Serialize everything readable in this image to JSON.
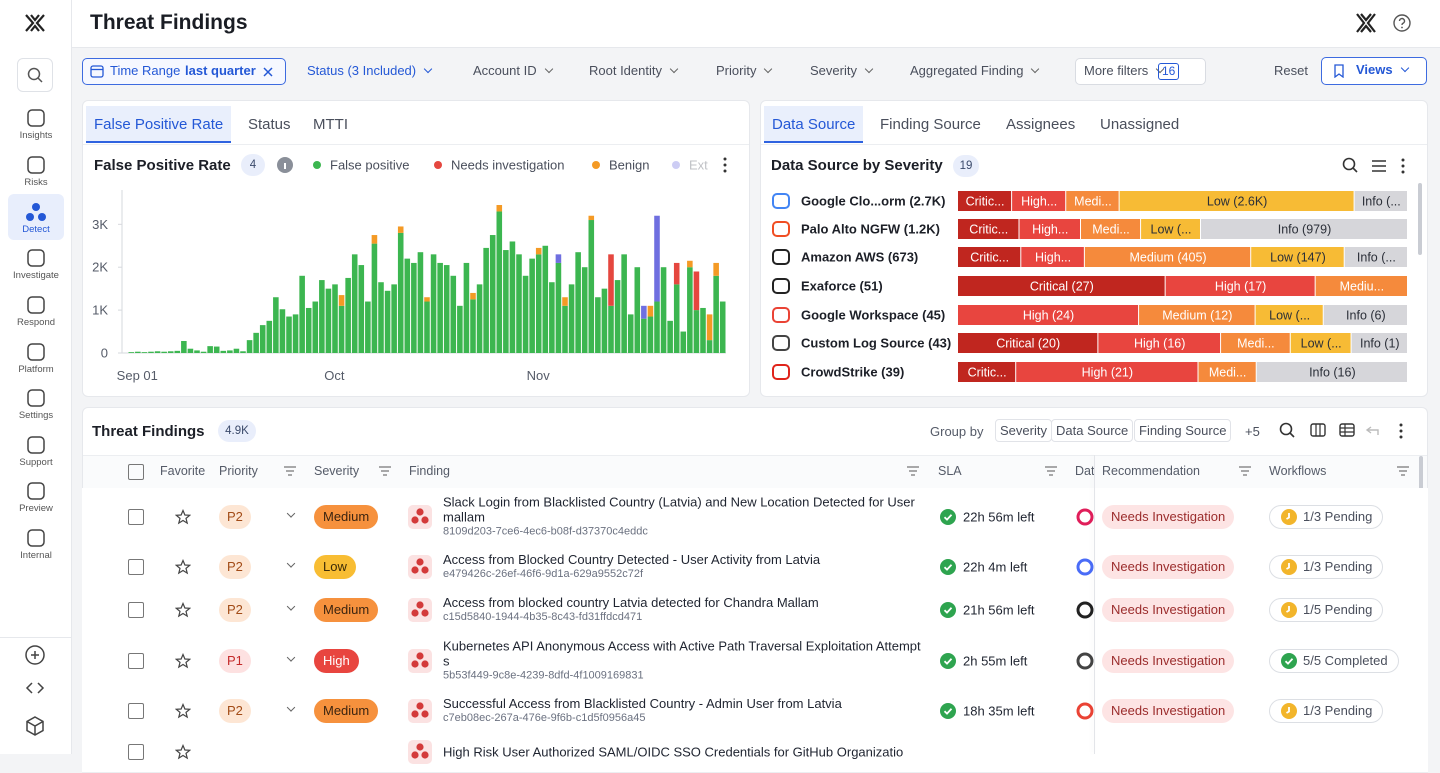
{
  "sidebar": {
    "items": [
      "Insights",
      "Risks",
      "Detect",
      "Investigate",
      "Respond",
      "Platform",
      "Settings",
      "Support",
      "Preview",
      "Internal"
    ],
    "active": "Detect"
  },
  "header": {
    "title": "Threat Findings"
  },
  "filters": {
    "time_range": {
      "label": "Time Range",
      "value": "last quarter"
    },
    "status": "Status (3 Included)",
    "items": [
      "Account ID",
      "Root Identity",
      "Priority",
      "Severity",
      "Aggregated Finding"
    ],
    "more": {
      "label": "More filters",
      "count": "16"
    },
    "reset": "Reset",
    "views": "Views"
  },
  "fp_panel": {
    "tabs": [
      "False Positive Rate",
      "Status",
      "MTTI"
    ],
    "badge": "4"
  },
  "chart_data": {
    "type": "bar",
    "stacked": true,
    "title": "False Positive Rate",
    "categories": [
      "Sep 01",
      null,
      null,
      null,
      null,
      null,
      null,
      null,
      null,
      null,
      null,
      null,
      null,
      null,
      null,
      null,
      null,
      null,
      null,
      null,
      null,
      null,
      null,
      null,
      null,
      null,
      null,
      null,
      null,
      null,
      "Oct",
      null,
      null,
      null,
      null,
      null,
      null,
      null,
      null,
      null,
      null,
      null,
      null,
      null,
      null,
      null,
      null,
      null,
      null,
      null,
      null,
      null,
      null,
      null,
      null,
      null,
      null,
      null,
      null,
      null,
      null,
      "Nov",
      null,
      null,
      null,
      null,
      null,
      null,
      null,
      null,
      null,
      null,
      null,
      null,
      null,
      null,
      null,
      null,
      null,
      null,
      null,
      null,
      null,
      null,
      null,
      null,
      null,
      null,
      null,
      null,
      null
    ],
    "series": [
      {
        "name": "False positive",
        "color": "#3cb650",
        "values": [
          20,
          30,
          20,
          30,
          40,
          30,
          40,
          50,
          280,
          100,
          60,
          30,
          160,
          150,
          50,
          60,
          100,
          40,
          300,
          470,
          650,
          750,
          1300,
          1020,
          850,
          900,
          1800,
          1050,
          1200,
          1700,
          1500,
          1600,
          1100,
          1750,
          2300,
          2050,
          1200,
          2550,
          1650,
          1450,
          1600,
          2800,
          2200,
          2100,
          2350,
          1200,
          2300,
          2100,
          2050,
          1800,
          1100,
          2100,
          1250,
          1600,
          2450,
          2750,
          3300,
          2400,
          2600,
          2300,
          1800,
          2200,
          2300,
          2500,
          1650,
          2100,
          1100,
          1600,
          2350,
          2000,
          3100,
          1300,
          1500,
          1100,
          1700,
          2300,
          900,
          2000,
          800,
          850,
          1200,
          2000,
          750,
          1600,
          500,
          2000,
          1000,
          1050,
          300,
          1800,
          1200
        ]
      },
      {
        "name": "Needs investigation",
        "color": "#e5473f",
        "values": [
          0,
          0,
          0,
          0,
          0,
          0,
          0,
          0,
          0,
          0,
          0,
          0,
          0,
          0,
          0,
          0,
          0,
          0,
          0,
          0,
          0,
          0,
          0,
          0,
          0,
          0,
          0,
          0,
          0,
          0,
          0,
          0,
          0,
          0,
          0,
          0,
          0,
          0,
          0,
          0,
          0,
          0,
          0,
          0,
          0,
          0,
          0,
          0,
          0,
          0,
          0,
          0,
          0,
          0,
          0,
          0,
          0,
          0,
          0,
          0,
          0,
          0,
          0,
          0,
          0,
          0,
          0,
          0,
          0,
          0,
          0,
          0,
          0,
          1200,
          0,
          0,
          0,
          0,
          0,
          0,
          0,
          0,
          0,
          500,
          0,
          0,
          900,
          0,
          0,
          0,
          0
        ]
      },
      {
        "name": "Benign",
        "color": "#f49a25",
        "values": [
          0,
          0,
          0,
          0,
          0,
          0,
          0,
          0,
          0,
          0,
          0,
          0,
          0,
          0,
          0,
          0,
          0,
          0,
          0,
          0,
          0,
          0,
          0,
          0,
          0,
          0,
          0,
          0,
          0,
          0,
          0,
          0,
          250,
          0,
          0,
          0,
          0,
          200,
          0,
          0,
          0,
          150,
          0,
          0,
          0,
          100,
          0,
          0,
          0,
          0,
          0,
          0,
          150,
          0,
          0,
          0,
          150,
          0,
          0,
          0,
          0,
          0,
          150,
          0,
          0,
          0,
          200,
          0,
          0,
          0,
          100,
          0,
          0,
          0,
          0,
          0,
          0,
          0,
          0,
          250,
          0,
          0,
          0,
          0,
          0,
          150,
          0,
          0,
          600,
          300,
          0
        ]
      },
      {
        "name": "Ext",
        "color": "#6f6fe0",
        "values": [
          0,
          0,
          0,
          0,
          0,
          0,
          0,
          0,
          0,
          0,
          0,
          0,
          0,
          0,
          0,
          0,
          0,
          0,
          0,
          0,
          0,
          0,
          0,
          0,
          0,
          0,
          0,
          0,
          0,
          0,
          0,
          0,
          0,
          0,
          0,
          0,
          0,
          0,
          0,
          0,
          0,
          0,
          0,
          0,
          0,
          0,
          0,
          0,
          0,
          0,
          0,
          0,
          0,
          0,
          0,
          0,
          0,
          0,
          0,
          0,
          0,
          0,
          0,
          0,
          0,
          200,
          0,
          0,
          0,
          0,
          0,
          0,
          0,
          0,
          0,
          0,
          0,
          0,
          300,
          0,
          2000,
          0,
          0,
          0,
          0,
          0,
          0,
          0,
          0,
          0,
          0
        ]
      }
    ],
    "ylim": [
      0,
      3800
    ],
    "yticks": [
      0,
      {
        "value": 1000,
        "label": "1K"
      },
      {
        "value": 2000,
        "label": "2K"
      },
      {
        "value": 3000,
        "label": "3K"
      }
    ],
    "grid": false
  },
  "ds_panel": {
    "tabs": [
      "Data Source",
      "Finding Source",
      "Assignees",
      "Unassigned"
    ],
    "title": "Data Source by Severity",
    "badge": "19",
    "rows": [
      {
        "label": "Google Clo...orm (2.7K)",
        "segments": [
          {
            "value": 30,
            "label": "Critic...",
            "color": "#c0261f"
          },
          {
            "value": 30,
            "label": "High...",
            "color": "#e8453f"
          },
          {
            "value": 20,
            "label": "Medi...",
            "color": "#f58a3c"
          },
          {
            "value": 2600,
            "label": "Low (2.6K)",
            "color": "#f7bb35"
          },
          {
            "value": 20,
            "label": "Info (...",
            "color": "#d6d6da"
          }
        ]
      },
      {
        "label": "Palo Alto NGFW (1.2K)",
        "segments": [
          {
            "value": 60,
            "label": "Critic...",
            "color": "#c0261f"
          },
          {
            "value": 60,
            "label": "High...",
            "color": "#e8453f"
          },
          {
            "value": 51,
            "label": "Medi...",
            "color": "#f58a3c"
          },
          {
            "value": 50,
            "label": "Low (...",
            "color": "#f7bb35"
          },
          {
            "value": 979,
            "label": "Info (979)",
            "color": "#d6d6da"
          }
        ]
      },
      {
        "label": "Amazon AWS (673)",
        "segments": [
          {
            "value": 40,
            "label": "Critic...",
            "color": "#c0261f"
          },
          {
            "value": 41,
            "label": "High...",
            "color": "#e8453f"
          },
          {
            "value": 405,
            "label": "Medium (405)",
            "color": "#f58a3c"
          },
          {
            "value": 147,
            "label": "Low (147)",
            "color": "#f7bb35"
          },
          {
            "value": 40,
            "label": "Info (...",
            "color": "#d6d6da"
          }
        ]
      },
      {
        "label": "Exaforce (51)",
        "segments": [
          {
            "value": 27,
            "label": "Critical (27)",
            "color": "#c0261f"
          },
          {
            "value": 17,
            "label": "High (17)",
            "color": "#e8453f"
          },
          {
            "value": 7,
            "label": "Mediu...",
            "color": "#f58a3c"
          }
        ]
      },
      {
        "label": "Google Workspace (45)",
        "segments": [
          {
            "value": 24,
            "label": "High (24)",
            "color": "#e8453f"
          },
          {
            "value": 12,
            "label": "Medium (12)",
            "color": "#f58a3c"
          },
          {
            "value": 3,
            "label": "Low (...",
            "color": "#f7bb35"
          },
          {
            "value": 6,
            "label": "Info (6)",
            "color": "#d6d6da"
          }
        ]
      },
      {
        "label": "Custom Log Source (43)",
        "segments": [
          {
            "value": 20,
            "label": "Critical (20)",
            "color": "#c0261f"
          },
          {
            "value": 16,
            "label": "High (16)",
            "color": "#e8453f"
          },
          {
            "value": 4,
            "label": "Medi...",
            "color": "#f58a3c"
          },
          {
            "value": 2,
            "label": "Low (...",
            "color": "#f7bb35"
          },
          {
            "value": 1,
            "label": "Info (1)",
            "color": "#d6d6da"
          }
        ]
      },
      {
        "label": "CrowdStrike (39)",
        "segments": [
          {
            "value": 1,
            "label": "Critic...",
            "color": "#c0261f"
          },
          {
            "value": 21,
            "label": "High (21)",
            "color": "#e8453f"
          },
          {
            "value": 1,
            "label": "Medi...",
            "color": "#f58a3c"
          },
          {
            "value": 16,
            "label": "Info (16)",
            "color": "#d6d6da"
          }
        ]
      }
    ]
  },
  "table": {
    "title": "Threat Findings",
    "count": "4.9K",
    "group_by": {
      "label": "Group by",
      "items": [
        "Severity",
        "Data Source",
        "Finding Source"
      ],
      "more": "+5"
    },
    "columns": [
      "Favorite",
      "Priority",
      "Severity",
      "Finding",
      "SLA",
      "Dat",
      "Recommendation",
      "Workflows"
    ],
    "rows": [
      {
        "priority": {
          "label": "P2",
          "bg": "#fde6d4",
          "fg": "#a24b16"
        },
        "severity": {
          "label": "Medium",
          "bg": "#f6913d",
          "fg": "#3b2410"
        },
        "title": "Slack Login from Blacklisted Country (Latvia) and New Location Detected for User mallam",
        "id": "8109d203-7ce6-4ec6-b08f-d37370c4eddc",
        "sla": "22h 56m left",
        "recommendation": "Needs Investigation",
        "workflow": {
          "label": "1/3 Pending",
          "done": false
        }
      },
      {
        "priority": {
          "label": "P2",
          "bg": "#fde6d4",
          "fg": "#a24b16"
        },
        "severity": {
          "label": "Low",
          "bg": "#f8bd33",
          "fg": "#3b2a08"
        },
        "title": "Access from Blocked Country Detected - User Activity from Latvia",
        "id": "e479426c-26ef-46f6-9d1a-629a9552c72f",
        "sla": "22h 4m left",
        "recommendation": "Needs Investigation",
        "workflow": {
          "label": "1/3 Pending",
          "done": false
        }
      },
      {
        "priority": {
          "label": "P2",
          "bg": "#fde6d4",
          "fg": "#a24b16"
        },
        "severity": {
          "label": "Medium",
          "bg": "#f6913d",
          "fg": "#3b2410"
        },
        "title": "Access from blocked country Latvia detected for Chandra Mallam",
        "id": "c15d5840-1944-4b35-8c43-fd31ffdcd471",
        "sla": "21h 56m left",
        "recommendation": "Needs Investigation",
        "workflow": {
          "label": "1/5 Pending",
          "done": false
        }
      },
      {
        "priority": {
          "label": "P1",
          "bg": "#fde1e1",
          "fg": "#c42a2a"
        },
        "severity": {
          "label": "High",
          "bg": "#e8453f",
          "fg": "#ffffff"
        },
        "title": "Kubernetes API Anonymous Access with Active Path Traversal Exploitation Attempts",
        "id": "5b53f449-9c8e-4239-8dfd-4f1009169831",
        "sla": "2h 55m left",
        "recommendation": "Needs Investigation",
        "workflow": {
          "label": "5/5 Completed",
          "done": true
        }
      },
      {
        "priority": {
          "label": "P2",
          "bg": "#fde6d4",
          "fg": "#a24b16"
        },
        "severity": {
          "label": "Medium",
          "bg": "#f6913d",
          "fg": "#3b2410"
        },
        "title": "Successful Access from Blacklisted Country - Admin User from Latvia",
        "id": "c7eb08ec-267a-476e-9f6b-c1d5f0956a45",
        "sla": "18h 35m left",
        "recommendation": "Needs Investigation",
        "workflow": {
          "label": "1/3 Pending",
          "done": false
        }
      },
      {
        "title": "High Risk User Authorized SAML/OIDC SSO Credentials for GitHub Organizatio"
      }
    ]
  }
}
